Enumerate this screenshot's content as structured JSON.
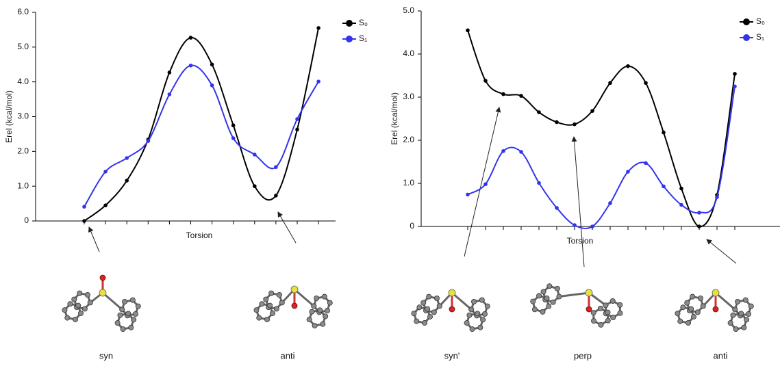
{
  "chart_data": [
    {
      "type": "line",
      "y_label": "Erel (kcal/mol)",
      "x_label": "Torsion",
      "categories": [
        null,
        null,
        null,
        null,
        null,
        null,
        null,
        null,
        null,
        null,
        null,
        null
      ],
      "series": [
        {
          "name": "S₀",
          "color": "#000000",
          "values": [
            0,
            0.45,
            1.16,
            2.34,
            4.27,
            5.27,
            4.5,
            2.75,
            1.0,
            0.73,
            2.63,
            5.55
          ]
        },
        {
          "name": "S₁",
          "color": "#3333ee",
          "values": [
            0.41,
            1.42,
            1.81,
            2.3,
            3.64,
            4.47,
            3.9,
            2.38,
            1.91,
            1.55,
            2.93,
            4.01
          ]
        }
      ],
      "ylim": [
        0,
        6
      ],
      "yticks": [
        0,
        {
          "value": 1,
          "label": "1.0"
        },
        {
          "value": 2,
          "label": "2.0"
        },
        {
          "value": 3,
          "label": "3.0"
        },
        {
          "value": 4,
          "label": "4.0"
        },
        {
          "value": 5,
          "label": "5.0"
        },
        {
          "value": 6,
          "label": "6.0"
        }
      ],
      "legend": "upper right",
      "annotations": [
        "syn",
        "anti"
      ]
    },
    {
      "type": "line",
      "y_label": "Erel (kcal/mol)",
      "x_label": "Torsion",
      "categories": [
        null,
        null,
        null,
        null,
        null,
        null,
        null,
        null,
        null,
        null,
        null,
        null,
        null,
        null,
        null,
        null
      ],
      "series": [
        {
          "name": "S₀",
          "color": "#000000",
          "values": [
            4.55,
            3.38,
            3.07,
            3.03,
            2.65,
            2.42,
            2.37,
            2.68,
            3.33,
            3.72,
            3.33,
            2.18,
            0.88,
            0,
            0.73,
            3.54
          ]
        },
        {
          "name": "S₁",
          "color": "#3333ee",
          "values": [
            0.74,
            0.98,
            1.75,
            1.73,
            1.01,
            0.43,
            0.03,
            0,
            0.54,
            1.27,
            1.47,
            0.93,
            0.5,
            0.32,
            0.68,
            3.25
          ]
        }
      ],
      "ylim": [
        0,
        5
      ],
      "yticks": [
        0,
        {
          "value": 1,
          "label": "1.0"
        },
        {
          "value": 2,
          "label": "2.0"
        },
        {
          "value": 3,
          "label": "3.0"
        },
        {
          "value": 4,
          "label": "4.0"
        },
        {
          "value": 5,
          "label": "5.0"
        }
      ],
      "legend": "upper right",
      "annotations": [
        "syn'",
        "perp",
        "anti"
      ]
    }
  ]
}
